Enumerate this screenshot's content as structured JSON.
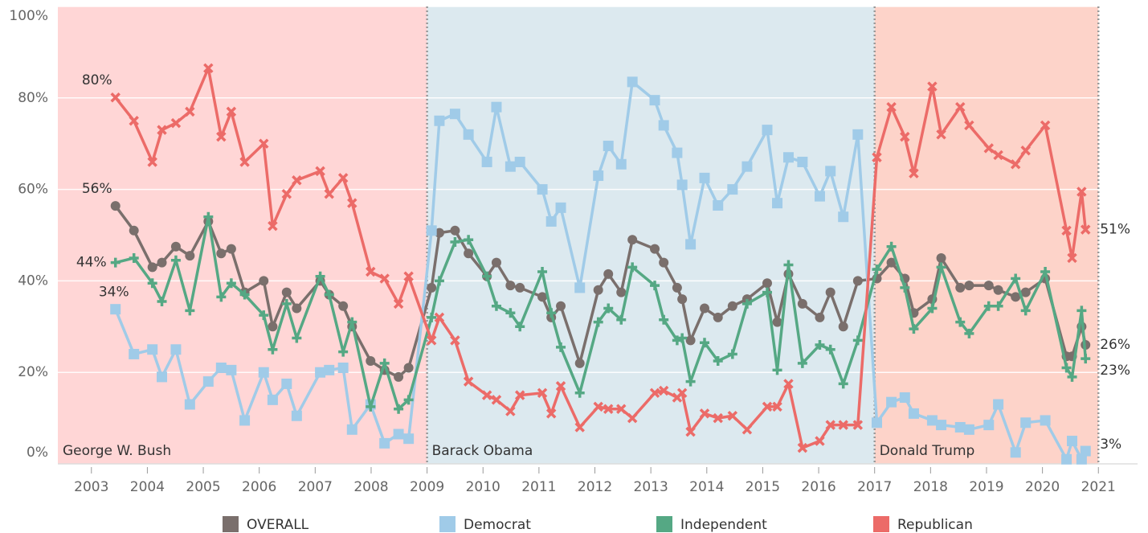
{
  "chart_data": {
    "type": "line",
    "xlim": [
      2002.4,
      2021.7
    ],
    "xticks": [
      2003,
      2004,
      2005,
      2006,
      2007,
      2008,
      2009,
      2010,
      2011,
      2012,
      2013,
      2014,
      2015,
      2016,
      2017,
      2018,
      2019,
      2020,
      2021
    ],
    "ylim": [
      0,
      100
    ],
    "yticks": [
      {
        "value": 0,
        "label": "0%"
      },
      {
        "value": 20,
        "label": "20%"
      },
      {
        "value": 40,
        "label": "40%"
      },
      {
        "value": 60,
        "label": "60%"
      },
      {
        "value": 80,
        "label": "80%"
      },
      {
        "value": 100,
        "label": "100%"
      }
    ],
    "grid": true,
    "legend": "bottom",
    "regions": [
      {
        "label": "George W. Bush",
        "start": 2002.4,
        "end": 2009,
        "color": "#ffd6d6"
      },
      {
        "label": "Barack Obama",
        "start": 2009,
        "end": 2017,
        "color": "#dce9ef"
      },
      {
        "label": "Donald Trump",
        "start": 2017,
        "end": 2021,
        "color": "#fdd3c9"
      }
    ],
    "x": [
      2003.43,
      2003.76,
      2004.09,
      2004.26,
      2004.51,
      2004.76,
      2005.09,
      2005.32,
      2005.5,
      2005.74,
      2006.08,
      2006.24,
      2006.49,
      2006.67,
      2007.09,
      2007.25,
      2007.5,
      2007.66,
      2007.99,
      2008.24,
      2008.49,
      2008.67,
      2009.08,
      2009.22,
      2009.5,
      2009.74,
      2010.07,
      2010.24,
      2010.49,
      2010.66,
      2011.06,
      2011.22,
      2011.39,
      2011.73,
      2012.06,
      2012.24,
      2012.47,
      2012.67,
      2013.07,
      2013.23,
      2013.47,
      2013.56,
      2013.71,
      2013.96,
      2014.2,
      2014.46,
      2014.72,
      2015.08,
      2015.26,
      2015.46,
      2015.71,
      2016.02,
      2016.21,
      2016.44,
      2016.7,
      2017.04,
      2017.3,
      2017.54,
      2017.7,
      2018.03,
      2018.19,
      2018.53,
      2018.69,
      2019.04,
      2019.21,
      2019.52,
      2019.7,
      2020.05,
      2020.43,
      2020.53,
      2020.7,
      2020.77
    ],
    "series": [
      {
        "name": "OVERALL",
        "color": "#7a6f6c",
        "marker": "circle",
        "values": [
          56.4,
          51,
          43,
          44,
          47.5,
          45.5,
          53,
          46,
          47,
          37.5,
          40,
          30,
          37.5,
          34,
          40,
          37,
          34.5,
          30,
          22.5,
          20.5,
          19,
          21,
          38.5,
          50.5,
          51,
          46,
          41,
          44,
          39,
          38.5,
          36.5,
          32,
          34.5,
          22,
          38,
          41.5,
          37.5,
          49,
          47,
          44,
          38.5,
          36,
          27,
          34,
          32,
          34.5,
          36,
          39.5,
          31,
          41.5,
          35,
          32,
          37.5,
          30,
          40,
          40.5,
          44,
          40.5,
          33,
          36,
          45,
          38.5,
          39,
          39,
          38,
          36.5,
          37.5,
          40.5,
          23.5,
          23.5,
          30,
          26
        ],
        "value_labels": [
          "56%",
          null,
          null,
          null,
          null,
          null,
          null,
          null,
          null,
          null,
          null,
          null,
          null,
          null,
          null,
          null,
          null,
          null,
          null,
          null,
          null,
          null,
          null,
          null,
          null,
          null,
          null,
          null,
          null,
          null,
          null,
          null,
          null,
          null,
          null,
          null,
          null,
          null,
          null,
          null,
          null,
          null,
          null,
          null,
          null,
          null,
          null,
          null,
          null,
          null,
          null,
          null,
          null,
          null,
          null,
          null,
          null,
          null,
          null,
          null,
          null,
          null,
          null,
          null,
          null,
          null,
          null,
          null,
          null,
          null,
          null,
          "26%"
        ]
      },
      {
        "name": "Democrat",
        "color": "#a0cbe8",
        "marker": "square",
        "values": [
          33.8,
          24,
          25,
          19,
          25,
          13,
          18,
          21,
          20.5,
          9.5,
          20,
          14,
          17.5,
          10.5,
          20,
          20.5,
          21,
          7.5,
          13,
          4.5,
          6.5,
          5.5,
          51,
          75,
          76.5,
          72,
          66,
          78,
          65,
          66,
          60,
          53,
          56,
          38.5,
          63,
          69.5,
          65.5,
          83.5,
          79.5,
          74,
          68,
          61,
          48,
          62.5,
          56.5,
          60,
          65,
          73,
          57,
          67,
          66,
          58.5,
          64,
          54,
          72,
          9,
          13.5,
          14.5,
          11,
          9.5,
          8.5,
          8,
          7.5,
          8.5,
          13,
          2.5,
          9,
          9.5,
          1,
          5,
          1,
          2.8
        ],
        "value_labels": [
          "34%",
          null,
          null,
          null,
          null,
          null,
          null,
          null,
          null,
          null,
          null,
          null,
          null,
          null,
          null,
          null,
          null,
          null,
          null,
          null,
          null,
          null,
          null,
          null,
          null,
          null,
          null,
          null,
          null,
          null,
          null,
          null,
          null,
          null,
          null,
          null,
          null,
          null,
          null,
          null,
          null,
          null,
          null,
          null,
          null,
          null,
          null,
          null,
          null,
          null,
          null,
          null,
          null,
          null,
          null,
          null,
          null,
          null,
          null,
          null,
          null,
          null,
          null,
          null,
          null,
          null,
          null,
          null,
          null,
          null,
          null,
          "3%"
        ]
      },
      {
        "name": "Independent",
        "color": "#55a884",
        "marker": "plus",
        "values": [
          44,
          45,
          39.5,
          35.5,
          44.5,
          33.5,
          54,
          36.5,
          39.5,
          37,
          32.5,
          25,
          35,
          27.5,
          41,
          37,
          24.5,
          31,
          12.5,
          22,
          12,
          14,
          32,
          40,
          48.5,
          49,
          41,
          34.5,
          33,
          30,
          42,
          33,
          25.5,
          15.5,
          31,
          34,
          31.5,
          43,
          39,
          31.5,
          27,
          27.5,
          18,
          26.5,
          22.5,
          24,
          35,
          37.5,
          20.5,
          43.5,
          22,
          26,
          25,
          17.5,
          27,
          42.5,
          47.5,
          38.5,
          29.5,
          34,
          43,
          31,
          28.5,
          34.5,
          34.5,
          40.5,
          33.5,
          42,
          21,
          19,
          33.5,
          23
        ],
        "value_labels": [
          "44%",
          null,
          null,
          null,
          null,
          null,
          null,
          null,
          null,
          null,
          null,
          null,
          null,
          null,
          null,
          null,
          null,
          null,
          null,
          null,
          null,
          null,
          null,
          null,
          null,
          null,
          null,
          null,
          null,
          null,
          null,
          null,
          null,
          null,
          null,
          null,
          null,
          null,
          null,
          null,
          null,
          null,
          null,
          null,
          null,
          null,
          null,
          null,
          null,
          null,
          null,
          null,
          null,
          null,
          null,
          null,
          null,
          null,
          null,
          null,
          null,
          null,
          null,
          null,
          null,
          null,
          null,
          null,
          null,
          null,
          null,
          "23%"
        ]
      },
      {
        "name": "Republican",
        "color": "#ec6b68",
        "marker": "cross",
        "values": [
          80.1,
          75,
          66,
          73,
          74.5,
          77,
          86.5,
          71.5,
          77,
          66,
          70,
          52,
          59,
          62,
          64,
          59,
          62.5,
          57,
          42,
          40.5,
          35,
          41,
          27,
          32,
          27,
          18,
          15,
          14,
          11.5,
          15,
          15.5,
          11,
          17,
          8,
          12.5,
          12,
          12,
          10,
          15.5,
          16,
          14.5,
          15.5,
          7,
          11,
          10,
          10.5,
          7.5,
          12.5,
          12.5,
          17.5,
          3.5,
          5,
          8.5,
          8.5,
          8.5,
          67,
          78,
          71.5,
          63.5,
          82.5,
          72,
          78,
          74,
          69,
          67.5,
          65.5,
          68.5,
          74,
          51,
          45,
          59.5,
          51.2
        ],
        "value_labels": [
          "80%",
          null,
          null,
          null,
          null,
          null,
          null,
          null,
          null,
          null,
          null,
          null,
          null,
          null,
          null,
          null,
          null,
          null,
          null,
          null,
          null,
          null,
          null,
          null,
          null,
          null,
          null,
          null,
          null,
          null,
          null,
          null,
          null,
          null,
          null,
          null,
          null,
          null,
          null,
          null,
          null,
          null,
          null,
          null,
          null,
          null,
          null,
          null,
          null,
          null,
          null,
          null,
          null,
          null,
          null,
          null,
          null,
          null,
          null,
          null,
          null,
          null,
          null,
          null,
          null,
          null,
          null,
          null,
          null,
          null,
          null,
          "51%"
        ]
      }
    ]
  }
}
